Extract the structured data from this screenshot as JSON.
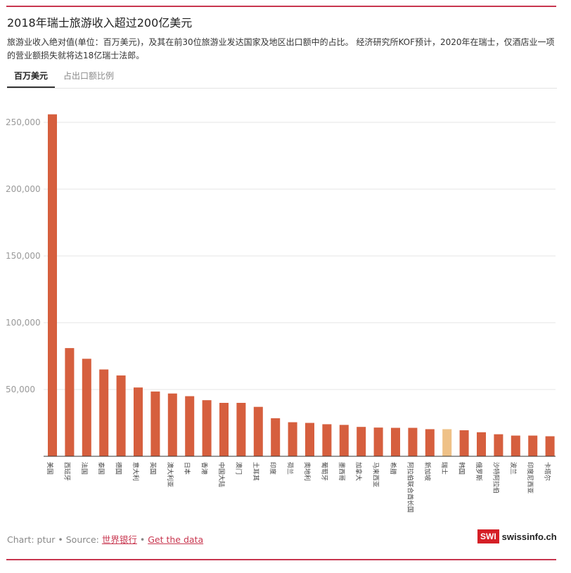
{
  "header": {
    "title": "2018年瑞士旅游收入超过200亿美元",
    "subtitle": "旅游业收入绝对值(单位：百万美元)，及其在前30位旅游业发达国家及地区出口额中的占比。 经济研究所KOF预计，2020年在瑞士，仅酒店业一项的营业额损失就将达18亿瑞士法郎。"
  },
  "tabs": [
    {
      "label": "百万美元",
      "active": true
    },
    {
      "label": "占出口额比例",
      "active": false
    }
  ],
  "footer": {
    "credit": "Chart: ptur • Source: ",
    "source_link": "世界银行",
    "separator": " • ",
    "data_link": "Get the data"
  },
  "logo": {
    "box": "SWI",
    "text": "swissinfo.ch"
  },
  "colors": {
    "bar": "#d65f3e",
    "highlight": "#efc187",
    "accent": "#c8364f"
  },
  "chart_data": {
    "type": "bar",
    "title": "",
    "xlabel": "",
    "ylabel": "",
    "ylim": [
      0,
      260000
    ],
    "yticks": [
      50000,
      100000,
      150000,
      200000,
      250000
    ],
    "ytick_labels": [
      "50,000",
      "100,000",
      "150,000",
      "200,000",
      "250,000"
    ],
    "grid": true,
    "highlight_category": "瑞士",
    "categories": [
      "美国",
      "西班牙",
      "法国",
      "泰国",
      "德国",
      "意大利",
      "英国",
      "澳大利亚",
      "日本",
      "香港",
      "中国大陆",
      "澳门",
      "土耳其",
      "印度",
      "荷兰",
      "奥地利",
      "葡萄牙",
      "墨西哥",
      "加拿大",
      "马来西亚",
      "希腊",
      "阿拉伯联合酋长国",
      "新加坡",
      "瑞士",
      "韩国",
      "俄罗斯",
      "沙特阿拉伯",
      "波兰",
      "印度尼西亚",
      "卡塔尔"
    ],
    "values": [
      256000,
      81000,
      73000,
      65000,
      60500,
      51500,
      48500,
      47000,
      45000,
      42000,
      40000,
      40000,
      37000,
      28500,
      25500,
      25000,
      24000,
      23500,
      22000,
      21500,
      21300,
      21300,
      20300,
      20300,
      19500,
      18000,
      16500,
      15500,
      15500,
      15000
    ]
  }
}
